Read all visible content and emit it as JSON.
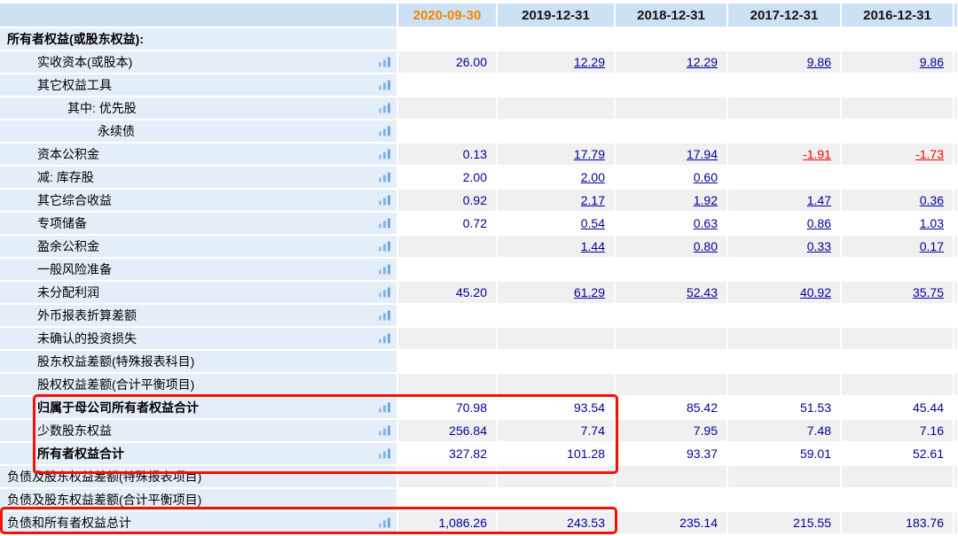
{
  "header": {
    "dates": [
      "2020-09-30",
      "2019-12-31",
      "2018-12-31",
      "2017-12-31",
      "2016-12-31"
    ]
  },
  "colors": {
    "current_period_header": "#f28500",
    "value_text": "#000099",
    "negative_value": "#ff0000",
    "header_bg": "#cde1f4",
    "label_column_bg": "#e4eef9",
    "stripe_row_bg": "#f0f0f0",
    "highlight_box_border": "#f51000",
    "bar_icon_blue": "#82b2e4"
  },
  "rows": [
    {
      "label": "所有者权益(或股东权益):",
      "indent": 0,
      "bold": true,
      "icon": false,
      "linked": false,
      "values": [
        "",
        "",
        "",
        "",
        ""
      ]
    },
    {
      "label": "实收资本(或股本)",
      "indent": 1,
      "bold": false,
      "icon": true,
      "linked": true,
      "values": [
        "26.00",
        "12.29",
        "12.29",
        "9.86",
        "9.86"
      ]
    },
    {
      "label": "其它权益工具",
      "indent": 1,
      "bold": false,
      "icon": true,
      "linked": false,
      "values": [
        "",
        "",
        "",
        "",
        ""
      ]
    },
    {
      "label": "其中: 优先股",
      "indent": 2,
      "bold": false,
      "icon": true,
      "linked": false,
      "values": [
        "",
        "",
        "",
        "",
        ""
      ]
    },
    {
      "label": "永续债",
      "indent": 3,
      "bold": false,
      "icon": true,
      "linked": false,
      "values": [
        "",
        "",
        "",
        "",
        ""
      ]
    },
    {
      "label": "资本公积金",
      "indent": 1,
      "bold": false,
      "icon": true,
      "linked": true,
      "values": [
        "0.13",
        "17.79",
        "17.94",
        "-1.91",
        "-1.73"
      ]
    },
    {
      "label": "减: 库存股",
      "indent": 1,
      "bold": false,
      "icon": true,
      "linked": true,
      "values": [
        "2.00",
        "2.00",
        "0.60",
        "",
        ""
      ]
    },
    {
      "label": "其它综合收益",
      "indent": 1,
      "bold": false,
      "icon": true,
      "linked": true,
      "values": [
        "0.92",
        "2.17",
        "1.92",
        "1.47",
        "0.36"
      ]
    },
    {
      "label": "专项储备",
      "indent": 1,
      "bold": false,
      "icon": true,
      "linked": true,
      "values": [
        "0.72",
        "0.54",
        "0.63",
        "0.86",
        "1.03"
      ]
    },
    {
      "label": "盈余公积金",
      "indent": 1,
      "bold": false,
      "icon": true,
      "linked": true,
      "values": [
        "",
        "1.44",
        "0.80",
        "0.33",
        "0.17"
      ]
    },
    {
      "label": "一般风险准备",
      "indent": 1,
      "bold": false,
      "icon": true,
      "linked": false,
      "values": [
        "",
        "",
        "",
        "",
        ""
      ]
    },
    {
      "label": "未分配利润",
      "indent": 1,
      "bold": false,
      "icon": true,
      "linked": true,
      "values": [
        "45.20",
        "61.29",
        "52.43",
        "40.92",
        "35.75"
      ]
    },
    {
      "label": "外币报表折算差额",
      "indent": 1,
      "bold": false,
      "icon": true,
      "linked": false,
      "values": [
        "",
        "",
        "",
        "",
        ""
      ]
    },
    {
      "label": "未确认的投资损失",
      "indent": 1,
      "bold": false,
      "icon": true,
      "linked": false,
      "values": [
        "",
        "",
        "",
        "",
        ""
      ]
    },
    {
      "label": "股东权益差额(特殊报表科目)",
      "indent": 1,
      "bold": false,
      "icon": false,
      "linked": false,
      "values": [
        "",
        "",
        "",
        "",
        ""
      ]
    },
    {
      "label": "股权权益差额(合计平衡项目)",
      "indent": 1,
      "bold": false,
      "icon": false,
      "linked": false,
      "values": [
        "",
        "",
        "",
        "",
        ""
      ]
    },
    {
      "label": "归属于母公司所有者权益合计",
      "indent": 1,
      "bold": true,
      "icon": true,
      "linked": false,
      "values": [
        "70.98",
        "93.54",
        "85.42",
        "51.53",
        "45.44"
      ]
    },
    {
      "label": "少数股东权益",
      "indent": 1,
      "bold": false,
      "icon": true,
      "linked": false,
      "values": [
        "256.84",
        "7.74",
        "7.95",
        "7.48",
        "7.16"
      ]
    },
    {
      "label": "所有者权益合计",
      "indent": 1,
      "bold": true,
      "icon": true,
      "linked": false,
      "values": [
        "327.82",
        "101.28",
        "93.37",
        "59.01",
        "52.61"
      ]
    },
    {
      "label": "负债及股东权益差额(特殊报表项目)",
      "indent": 0,
      "bold": false,
      "icon": false,
      "linked": false,
      "values": [
        "",
        "",
        "",
        "",
        ""
      ]
    },
    {
      "label": "负债及股东权益差额(合计平衡项目)",
      "indent": 0,
      "bold": false,
      "icon": false,
      "linked": false,
      "values": [
        "",
        "",
        "",
        "",
        ""
      ]
    },
    {
      "label": "负债和所有者权益总计",
      "indent": 0,
      "bold": false,
      "icon": true,
      "linked": false,
      "values": [
        "1,086.26",
        "243.53",
        "235.14",
        "215.55",
        "183.76"
      ]
    }
  ],
  "annotations": {
    "highlight_boxes": [
      {
        "name": "equity-summary-highlight"
      },
      {
        "name": "total-liabilities-and-equity-highlight"
      }
    ]
  }
}
